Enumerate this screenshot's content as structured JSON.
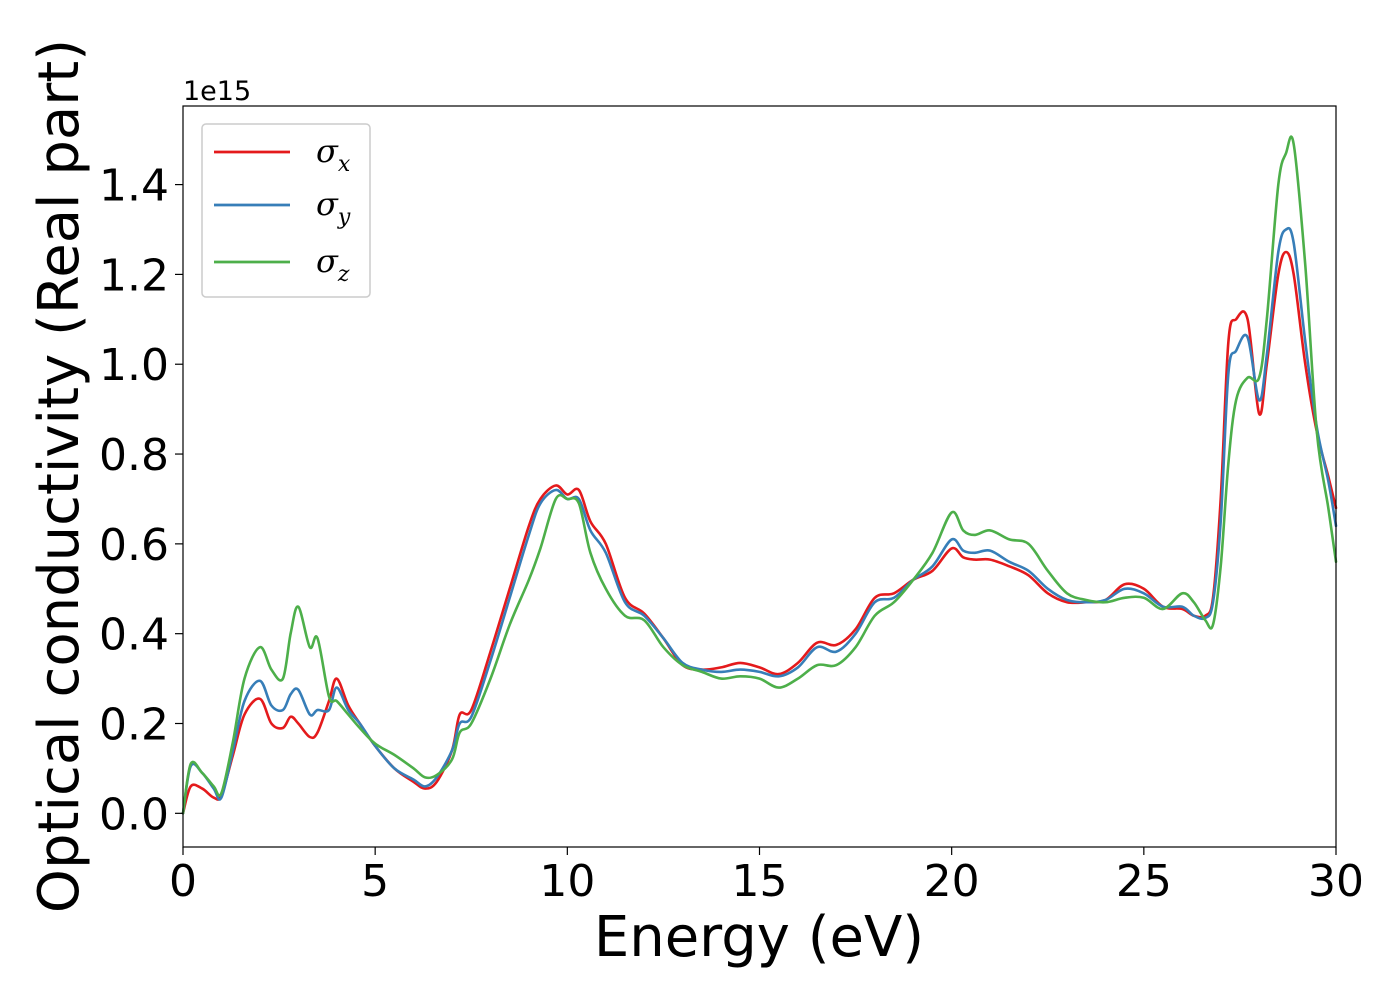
{
  "chart_data": {
    "type": "line",
    "title": "",
    "xlabel": "Energy (eV)",
    "ylabel": "Optical conductivity (Real part)",
    "y_offset_label": "1e15",
    "xlim": [
      0,
      30
    ],
    "ylim": [
      -0.075,
      1.575
    ],
    "x_ticks": [
      0,
      5,
      10,
      15,
      20,
      25,
      30
    ],
    "x_tick_labels": [
      "0",
      "5",
      "10",
      "15",
      "20",
      "25",
      "30"
    ],
    "y_ticks": [
      0.0,
      0.2,
      0.4,
      0.6,
      0.8,
      1.0,
      1.2,
      1.4
    ],
    "y_tick_labels": [
      "0.0",
      "0.2",
      "0.4",
      "0.6",
      "0.8",
      "1.0",
      "1.2",
      "1.4"
    ],
    "grid": false,
    "legend_position": "top-left",
    "x": [
      0,
      0.2,
      0.5,
      0.8,
      1.0,
      1.3,
      1.6,
      2.0,
      2.3,
      2.6,
      2.8,
      3.0,
      3.3,
      3.5,
      3.8,
      4.0,
      4.3,
      4.6,
      5.0,
      5.5,
      6.0,
      6.3,
      6.6,
      7.0,
      7.2,
      7.5,
      8.0,
      8.5,
      9.0,
      9.3,
      9.7,
      10.0,
      10.3,
      10.6,
      11.0,
      11.5,
      12.0,
      12.5,
      13.0,
      13.5,
      14.0,
      14.5,
      15.0,
      15.5,
      16.0,
      16.5,
      17.0,
      17.5,
      18.0,
      18.5,
      19.0,
      19.5,
      20.0,
      20.3,
      20.6,
      21.0,
      21.5,
      22.0,
      22.5,
      23.0,
      23.5,
      24.0,
      24.5,
      25.0,
      25.5,
      26.0,
      26.3,
      26.6,
      26.8,
      27.0,
      27.2,
      27.4,
      27.7,
      28.0,
      28.2,
      28.5,
      28.7,
      28.9,
      29.2,
      29.5,
      29.8,
      30.0
    ],
    "series": [
      {
        "name": "σx",
        "color": "#e41a1c",
        "values": [
          0.0,
          0.06,
          0.055,
          0.035,
          0.04,
          0.13,
          0.22,
          0.255,
          0.2,
          0.19,
          0.215,
          0.2,
          0.17,
          0.18,
          0.25,
          0.3,
          0.24,
          0.2,
          0.15,
          0.1,
          0.07,
          0.055,
          0.07,
          0.14,
          0.22,
          0.23,
          0.36,
          0.5,
          0.64,
          0.7,
          0.73,
          0.71,
          0.72,
          0.65,
          0.6,
          0.48,
          0.445,
          0.39,
          0.33,
          0.32,
          0.325,
          0.335,
          0.325,
          0.31,
          0.335,
          0.38,
          0.375,
          0.41,
          0.48,
          0.49,
          0.52,
          0.54,
          0.59,
          0.57,
          0.565,
          0.565,
          0.55,
          0.53,
          0.49,
          0.47,
          0.47,
          0.475,
          0.51,
          0.5,
          0.46,
          0.455,
          0.44,
          0.44,
          0.48,
          0.7,
          1.05,
          1.1,
          1.1,
          0.89,
          1.0,
          1.2,
          1.25,
          1.2,
          1.0,
          0.85,
          0.75,
          0.68
        ]
      },
      {
        "name": "σy",
        "color": "#377eb8",
        "values": [
          0.0,
          0.105,
          0.09,
          0.055,
          0.035,
          0.14,
          0.25,
          0.295,
          0.24,
          0.23,
          0.265,
          0.275,
          0.22,
          0.23,
          0.23,
          0.28,
          0.23,
          0.2,
          0.15,
          0.1,
          0.075,
          0.06,
          0.08,
          0.14,
          0.2,
          0.215,
          0.34,
          0.48,
          0.62,
          0.69,
          0.72,
          0.7,
          0.7,
          0.63,
          0.58,
          0.47,
          0.44,
          0.39,
          0.335,
          0.32,
          0.315,
          0.32,
          0.315,
          0.305,
          0.325,
          0.37,
          0.36,
          0.4,
          0.47,
          0.48,
          0.52,
          0.55,
          0.61,
          0.585,
          0.58,
          0.585,
          0.56,
          0.54,
          0.5,
          0.475,
          0.47,
          0.475,
          0.5,
          0.49,
          0.46,
          0.46,
          0.44,
          0.435,
          0.47,
          0.65,
          0.98,
          1.03,
          1.06,
          0.92,
          1.02,
          1.25,
          1.3,
          1.27,
          1.05,
          0.86,
          0.74,
          0.64
        ]
      },
      {
        "name": "σz",
        "color": "#4daf4a",
        "values": [
          0.0,
          0.11,
          0.09,
          0.06,
          0.045,
          0.16,
          0.3,
          0.37,
          0.32,
          0.3,
          0.4,
          0.46,
          0.37,
          0.39,
          0.26,
          0.25,
          0.22,
          0.19,
          0.155,
          0.13,
          0.1,
          0.08,
          0.085,
          0.12,
          0.18,
          0.2,
          0.3,
          0.42,
          0.52,
          0.59,
          0.7,
          0.7,
          0.69,
          0.58,
          0.5,
          0.44,
          0.43,
          0.37,
          0.33,
          0.315,
          0.3,
          0.305,
          0.3,
          0.28,
          0.3,
          0.33,
          0.33,
          0.37,
          0.44,
          0.47,
          0.52,
          0.58,
          0.67,
          0.63,
          0.62,
          0.63,
          0.61,
          0.6,
          0.54,
          0.49,
          0.475,
          0.47,
          0.48,
          0.48,
          0.455,
          0.49,
          0.47,
          0.43,
          0.42,
          0.55,
          0.78,
          0.92,
          0.97,
          0.97,
          1.1,
          1.4,
          1.47,
          1.49,
          1.22,
          0.85,
          0.68,
          0.56
        ]
      }
    ]
  }
}
